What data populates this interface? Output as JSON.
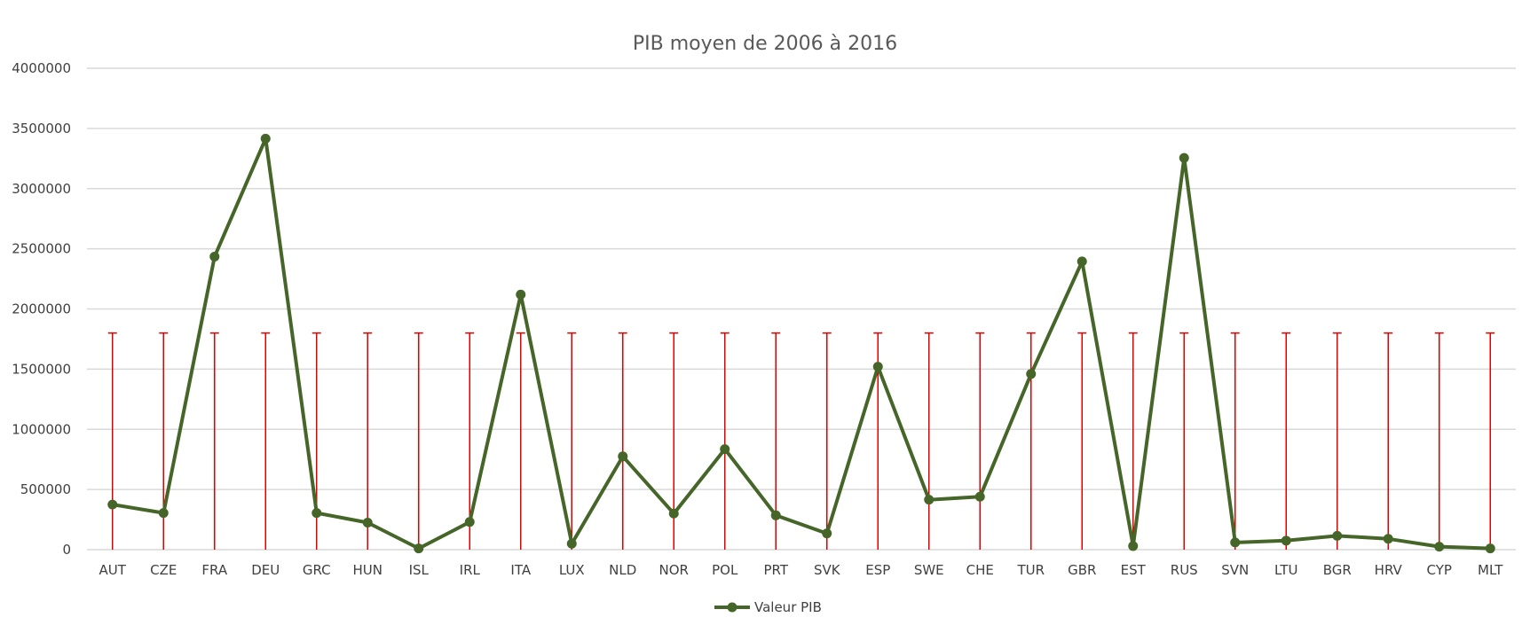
{
  "chart_data": {
    "type": "line",
    "title": "PIB moyen de 2006 à 2016",
    "xlabel": "",
    "ylabel": "",
    "categories": [
      "AUT",
      "CZE",
      "FRA",
      "DEU",
      "GRC",
      "HUN",
      "ISL",
      "IRL",
      "ITA",
      "LUX",
      "NLD",
      "NOR",
      "POL",
      "PRT",
      "SVK",
      "ESP",
      "SWE",
      "CHE",
      "TUR",
      "GBR",
      "EST",
      "RUS",
      "SVN",
      "LTU",
      "BGR",
      "HRV",
      "CYP",
      "MLT"
    ],
    "series": [
      {
        "name": "Valeur PIB",
        "color": "#456628",
        "values": [
          375000,
          305000,
          2435000,
          3415000,
          305000,
          225000,
          10000,
          230000,
          2120000,
          50000,
          775000,
          300000,
          835000,
          285000,
          135000,
          1520000,
          415000,
          440000,
          1460000,
          2395000,
          30000,
          3255000,
          60000,
          75000,
          115000,
          90000,
          25000,
          10000
        ]
      }
    ],
    "reference_bars": {
      "color": "#e00000",
      "value": 1800000
    },
    "ylim": [
      0,
      4000000
    ],
    "yticks": [
      "0",
      "500000",
      "1000000",
      "1500000",
      "2000000",
      "2500000",
      "3000000",
      "3500000",
      "4000000"
    ],
    "grid": true,
    "legend_position": "bottom"
  }
}
